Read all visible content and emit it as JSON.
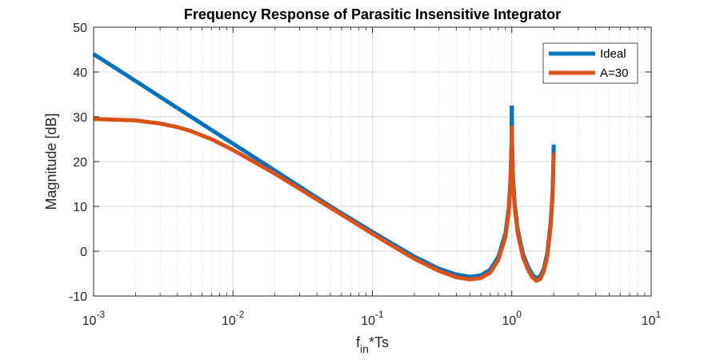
{
  "chart_data": {
    "type": "line",
    "title": "Frequency Response of Parasitic Insensitive Integrator",
    "xlabel": {
      "base": "f",
      "subscript": "in",
      "suffix": "*Ts"
    },
    "ylabel": "Magnitude [dB]",
    "x_scale": "log",
    "xlim": [
      0.001,
      10
    ],
    "ylim": [
      -10,
      50
    ],
    "x_ticks": [
      {
        "value": 0.001,
        "base": "10",
        "exp": "-3"
      },
      {
        "value": 0.01,
        "base": "10",
        "exp": "-2"
      },
      {
        "value": 0.1,
        "base": "10",
        "exp": "-1"
      },
      {
        "value": 1,
        "base": "10",
        "exp": "0"
      },
      {
        "value": 10,
        "base": "10",
        "exp": "1"
      }
    ],
    "y_ticks": [
      "-10",
      "0",
      "10",
      "20",
      "30",
      "40",
      "50"
    ],
    "grid": true,
    "minor_grid": true,
    "legend_position": "top-right",
    "series": [
      {
        "name": "Ideal",
        "color": "#0072BD",
        "segments": [
          [
            [
              0.001,
              44.0
            ],
            [
              0.002,
              38.0
            ],
            [
              0.005,
              30.0
            ],
            [
              0.01,
              24.0
            ],
            [
              0.02,
              18.0
            ],
            [
              0.05,
              10.0
            ],
            [
              0.1,
              4.3
            ],
            [
              0.2,
              -1.2
            ],
            [
              0.3,
              -3.9
            ],
            [
              0.4,
              -5.2
            ],
            [
              0.5,
              -5.7
            ],
            [
              0.6,
              -5.4
            ],
            [
              0.7,
              -4.1
            ],
            [
              0.8,
              -1.3
            ],
            [
              0.9,
              4.0
            ],
            [
              0.95,
              9.5
            ],
            [
              0.98,
              16.5
            ],
            [
              0.995,
              24.0
            ],
            [
              1.0,
              32.5
            ]
          ],
          [
            [
              1.0,
              32.5
            ],
            [
              1.005,
              24.0
            ],
            [
              1.02,
              16.5
            ],
            [
              1.05,
              10.5
            ],
            [
              1.1,
              5.0
            ],
            [
              1.2,
              -0.5
            ],
            [
              1.3,
              -3.3
            ],
            [
              1.4,
              -5.2
            ],
            [
              1.5,
              -6.0
            ],
            [
              1.6,
              -5.6
            ],
            [
              1.7,
              -3.8
            ],
            [
              1.8,
              -0.3
            ],
            [
              1.9,
              6.5
            ],
            [
              1.96,
              13.0
            ],
            [
              2.0,
              23.8
            ]
          ]
        ]
      },
      {
        "name": "A=30",
        "color": "#D95319",
        "segments": [
          [
            [
              0.001,
              29.5
            ],
            [
              0.002,
              29.2
            ],
            [
              0.003,
              28.5
            ],
            [
              0.004,
              27.7
            ],
            [
              0.005,
              26.8
            ],
            [
              0.007,
              25.0
            ],
            [
              0.01,
              22.6
            ],
            [
              0.02,
              17.3
            ],
            [
              0.05,
              9.7
            ],
            [
              0.1,
              3.9
            ],
            [
              0.2,
              -1.7
            ],
            [
              0.3,
              -4.4
            ],
            [
              0.4,
              -5.8
            ],
            [
              0.5,
              -6.3
            ],
            [
              0.6,
              -6.0
            ],
            [
              0.7,
              -4.8
            ],
            [
              0.8,
              -2.0
            ],
            [
              0.9,
              3.2
            ],
            [
              0.95,
              8.5
            ],
            [
              0.98,
              15.5
            ],
            [
              0.995,
              22.5
            ],
            [
              1.0,
              28.0
            ]
          ],
          [
            [
              1.0,
              28.0
            ],
            [
              1.005,
              22.5
            ],
            [
              1.02,
              15.5
            ],
            [
              1.05,
              9.8
            ],
            [
              1.1,
              4.3
            ],
            [
              1.2,
              -1.2
            ],
            [
              1.3,
              -4.0
            ],
            [
              1.4,
              -5.8
            ],
            [
              1.5,
              -6.6
            ],
            [
              1.6,
              -6.2
            ],
            [
              1.7,
              -4.4
            ],
            [
              1.8,
              -1.0
            ],
            [
              1.9,
              5.5
            ],
            [
              1.96,
              12.0
            ],
            [
              2.0,
              22.0
            ]
          ]
        ]
      }
    ]
  }
}
